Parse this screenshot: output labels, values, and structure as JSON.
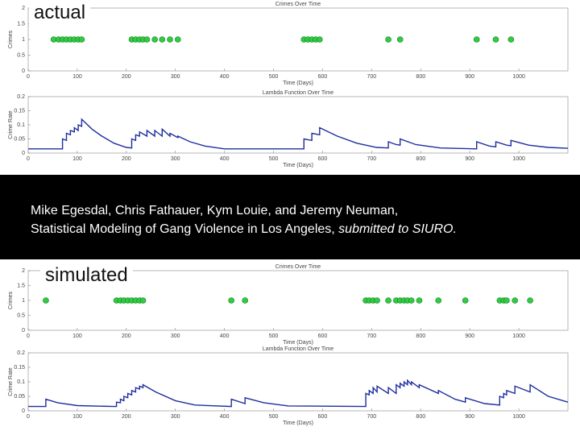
{
  "slide": {
    "label_top": "actual",
    "label_bottom": "simulated",
    "authors": "Mike Egesdal, Chris Fathauer, Kym Louie, and Jeremy Neuman,",
    "paper": "Statistical Modeling of Gang Violence in Los Angeles, ",
    "venue": "submitted to SIURO."
  },
  "chart_data": [
    {
      "type": "scatter",
      "title": "Crimes Over Time",
      "xlabel": "Time (Days)",
      "ylabel": "Crimes",
      "color": "#2ecc40",
      "xlim": [
        0,
        1100
      ],
      "xticks": [
        0,
        100,
        200,
        300,
        400,
        500,
        600,
        700,
        800,
        900,
        1000
      ],
      "ylim": [
        0,
        2
      ],
      "yticks": [
        0,
        0.5,
        1,
        1.5,
        2
      ],
      "x": [
        52,
        62,
        70,
        78,
        86,
        94,
        102,
        109,
        211,
        219,
        227,
        234,
        242,
        258,
        273,
        289,
        305,
        562,
        570,
        578,
        586,
        594,
        734,
        758,
        914,
        953,
        984
      ],
      "values": [
        1,
        1,
        1,
        1,
        1,
        1,
        1,
        1,
        1,
        1,
        1,
        1,
        1,
        1,
        1,
        1,
        1,
        1,
        1,
        1,
        1,
        1,
        1,
        1,
        1,
        1,
        1
      ]
    },
    {
      "type": "line",
      "title": "Lambda Function Over Time",
      "xlabel": "Time (Days)",
      "ylabel": "Crime Rate",
      "color": "#1f2e9e",
      "xlim": [
        0,
        1100
      ],
      "xticks": [
        0,
        100,
        200,
        300,
        400,
        500,
        600,
        700,
        800,
        900,
        1000
      ],
      "ylim": [
        0,
        0.2
      ],
      "yticks": [
        0,
        0.05,
        0.1,
        0.15,
        0.2
      ],
      "x": [
        0,
        70,
        70,
        78,
        78,
        86,
        86,
        94,
        94,
        102,
        102,
        109,
        109,
        130,
        150,
        175,
        200,
        211,
        211,
        219,
        219,
        227,
        227,
        242,
        242,
        258,
        258,
        273,
        273,
        289,
        289,
        305,
        305,
        330,
        360,
        400,
        562,
        562,
        578,
        578,
        594,
        594,
        630,
        670,
        710,
        734,
        734,
        750,
        758,
        758,
        790,
        840,
        914,
        914,
        940,
        953,
        953,
        975,
        984,
        984,
        1020,
        1060,
        1100
      ],
      "values": [
        0.015,
        0.015,
        0.05,
        0.045,
        0.07,
        0.065,
        0.08,
        0.075,
        0.09,
        0.08,
        0.1,
        0.095,
        0.12,
        0.085,
        0.06,
        0.035,
        0.02,
        0.018,
        0.05,
        0.045,
        0.065,
        0.06,
        0.075,
        0.06,
        0.08,
        0.06,
        0.08,
        0.06,
        0.085,
        0.06,
        0.07,
        0.055,
        0.06,
        0.04,
        0.025,
        0.015,
        0.015,
        0.05,
        0.045,
        0.07,
        0.065,
        0.09,
        0.06,
        0.035,
        0.02,
        0.018,
        0.04,
        0.03,
        0.028,
        0.05,
        0.03,
        0.018,
        0.015,
        0.04,
        0.025,
        0.022,
        0.04,
        0.028,
        0.026,
        0.045,
        0.028,
        0.02,
        0.017
      ]
    },
    {
      "type": "scatter",
      "title": "Crimes Over Time",
      "xlabel": "Time (Days)",
      "ylabel": "Crimes",
      "color": "#2ecc40",
      "xlim": [
        0,
        1100
      ],
      "xticks": [
        0,
        100,
        200,
        300,
        400,
        500,
        600,
        700,
        800,
        900,
        1000
      ],
      "ylim": [
        0,
        2
      ],
      "yticks": [
        0,
        0.5,
        1,
        1.5,
        2
      ],
      "x": [
        36,
        180,
        188,
        195,
        203,
        211,
        219,
        227,
        234,
        414,
        442,
        688,
        695,
        703,
        711,
        734,
        750,
        758,
        766,
        773,
        781,
        797,
        836,
        891,
        961,
        969,
        975,
        992,
        1023
      ],
      "values": [
        1,
        1,
        1,
        1,
        1,
        1,
        1,
        1,
        1,
        1,
        1,
        1,
        1,
        1,
        1,
        1,
        1,
        1,
        1,
        1,
        1,
        1,
        1,
        1,
        1,
        1,
        1,
        1,
        1
      ]
    },
    {
      "type": "line",
      "title": "Lambda Function Over Time",
      "xlabel": "Time (Days)",
      "ylabel": "Crime Rate",
      "color": "#1f2e9e",
      "xlim": [
        0,
        1100
      ],
      "xticks": [
        0,
        100,
        200,
        300,
        400,
        500,
        600,
        700,
        800,
        900,
        1000
      ],
      "ylim": [
        0,
        0.2
      ],
      "yticks": [
        0,
        0.05,
        0.1,
        0.15,
        0.2
      ],
      "x": [
        0,
        36,
        36,
        60,
        100,
        175,
        180,
        180,
        188,
        188,
        195,
        195,
        203,
        203,
        211,
        211,
        219,
        219,
        227,
        227,
        234,
        234,
        260,
        300,
        340,
        414,
        414,
        442,
        442,
        480,
        530,
        688,
        688,
        695,
        695,
        703,
        703,
        711,
        711,
        734,
        734,
        750,
        750,
        758,
        758,
        766,
        766,
        773,
        773,
        781,
        781,
        797,
        797,
        836,
        836,
        870,
        891,
        891,
        930,
        961,
        961,
        969,
        969,
        975,
        975,
        992,
        992,
        1023,
        1023,
        1060,
        1100
      ],
      "values": [
        0.015,
        0.015,
        0.04,
        0.028,
        0.018,
        0.015,
        0.015,
        0.03,
        0.028,
        0.04,
        0.035,
        0.05,
        0.045,
        0.06,
        0.055,
        0.07,
        0.065,
        0.08,
        0.075,
        0.085,
        0.08,
        0.09,
        0.065,
        0.035,
        0.02,
        0.015,
        0.04,
        0.025,
        0.045,
        0.028,
        0.017,
        0.015,
        0.06,
        0.055,
        0.07,
        0.06,
        0.08,
        0.065,
        0.085,
        0.06,
        0.08,
        0.06,
        0.09,
        0.08,
        0.095,
        0.085,
        0.1,
        0.09,
        0.105,
        0.09,
        0.1,
        0.08,
        0.09,
        0.06,
        0.07,
        0.04,
        0.03,
        0.045,
        0.025,
        0.02,
        0.05,
        0.045,
        0.06,
        0.055,
        0.07,
        0.06,
        0.085,
        0.065,
        0.09,
        0.05,
        0.03
      ]
    }
  ]
}
